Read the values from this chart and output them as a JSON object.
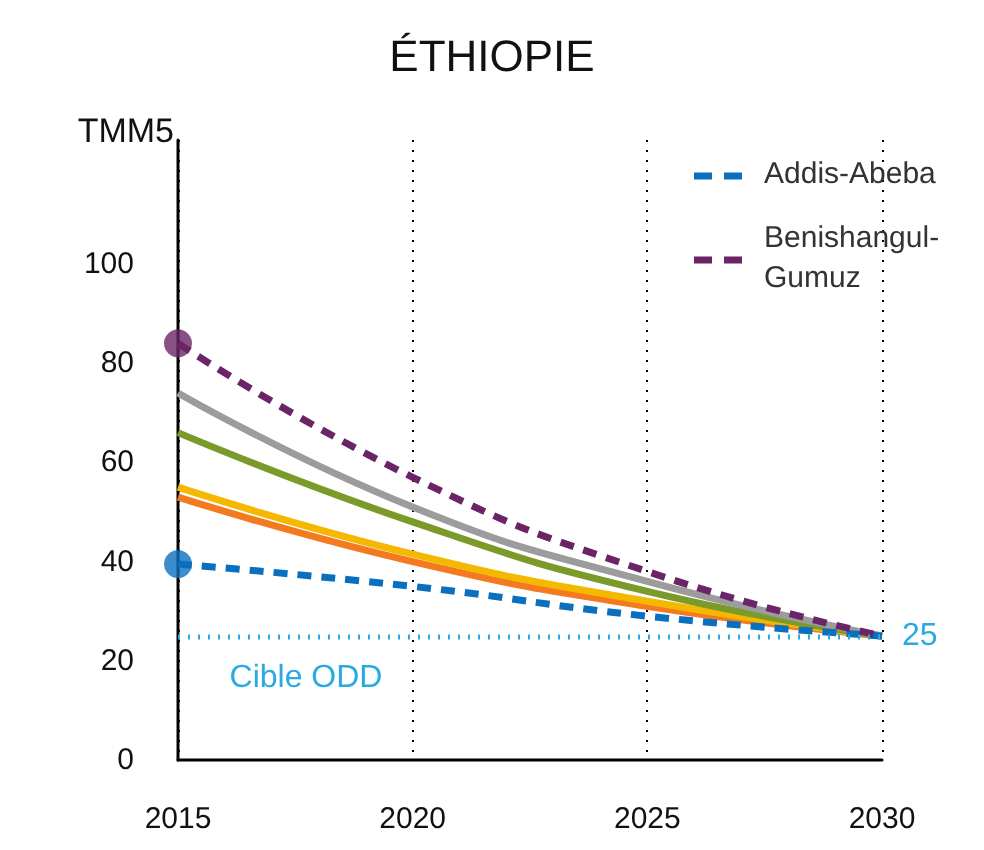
{
  "chart_data": {
    "type": "line",
    "title": "ÉTHIOPIE",
    "ylabel": "TMM5",
    "x": [
      2015,
      2020,
      2025,
      2030
    ],
    "series": [
      {
        "color": "#f47a20",
        "values": [
          53,
          40,
          31,
          25
        ]
      },
      {
        "color": "#f5b800",
        "values": [
          55,
          41.5,
          32,
          25
        ]
      },
      {
        "color": "#7a9a2a",
        "values": [
          66,
          48,
          34,
          25
        ]
      },
      {
        "color": "#9c9c9c",
        "values": [
          74,
          51,
          36,
          25
        ]
      },
      {
        "name": "Addis-Abeba",
        "color": "#0a6fbf",
        "values": [
          39.5,
          35,
          29,
          25
        ],
        "line_style": "dashed"
      },
      {
        "name": "Benishangul-Gumuz",
        "color": "#6b2466",
        "values": [
          84,
          57,
          38,
          25
        ],
        "line_style": "dashed"
      },
      {
        "type": "scatter",
        "color": "#0a6fbf",
        "x": [
          2015
        ],
        "values": [
          39.5
        ],
        "marker": "circle"
      },
      {
        "type": "scatter",
        "color": "#6b2466",
        "x": [
          2015
        ],
        "values": [
          84
        ],
        "marker": "circle"
      }
    ],
    "xlim": [
      2015,
      2030
    ],
    "xticks": [
      2015,
      2020,
      2025,
      2030
    ],
    "ylim": [
      0,
      125
    ],
    "yticks": [
      0,
      20,
      40,
      60,
      80,
      100
    ],
    "grid": "x",
    "legend": "top right",
    "ref_lines": [
      {
        "axis": "y",
        "value": 25,
        "label": "25",
        "color": "#29abe2",
        "line_style": "dotted"
      }
    ],
    "annotations": [
      "Cible ODD"
    ]
  }
}
